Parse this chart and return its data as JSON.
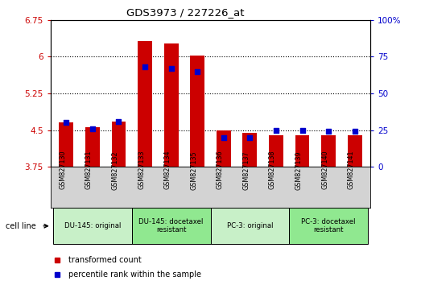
{
  "title": "GDS3973 / 227226_at",
  "samples": [
    "GSM827130",
    "GSM827131",
    "GSM827132",
    "GSM827133",
    "GSM827134",
    "GSM827135",
    "GSM827136",
    "GSM827137",
    "GSM827138",
    "GSM827139",
    "GSM827140",
    "GSM827141"
  ],
  "bar_values": [
    4.65,
    4.55,
    4.67,
    6.32,
    6.27,
    6.02,
    4.5,
    4.45,
    4.4,
    4.4,
    4.4,
    4.4
  ],
  "dot_values": [
    30,
    26,
    31,
    68,
    67,
    65,
    20,
    20,
    25,
    25,
    24,
    24
  ],
  "ymin": 3.75,
  "ymax": 6.75,
  "yticks": [
    3.75,
    4.5,
    5.25,
    6.0,
    6.75
  ],
  "ytick_labels": [
    "3.75",
    "4.5",
    "5.25",
    "6",
    "6.75"
  ],
  "y2min": 0,
  "y2max": 100,
  "y2ticks": [
    0,
    25,
    50,
    75,
    100
  ],
  "y2tick_labels": [
    "0",
    "25",
    "50",
    "75",
    "100%"
  ],
  "hlines": [
    4.5,
    5.25,
    6.0
  ],
  "bar_color": "#cc0000",
  "dot_color": "#0000cc",
  "bar_bottom": 3.75,
  "cell_line_groups": [
    {
      "label": "DU-145: original",
      "start": 0,
      "end": 3,
      "color": "#c8f0c8"
    },
    {
      "label": "DU-145: docetaxel\nresistant",
      "start": 3,
      "end": 6,
      "color": "#90e890"
    },
    {
      "label": "PC-3: original",
      "start": 6,
      "end": 9,
      "color": "#c8f0c8"
    },
    {
      "label": "PC-3: docetaxel\nresistant",
      "start": 9,
      "end": 12,
      "color": "#90e890"
    }
  ],
  "legend_items": [
    {
      "label": "transformed count",
      "color": "#cc0000"
    },
    {
      "label": "percentile rank within the sample",
      "color": "#0000cc"
    }
  ],
  "cell_line_label": "cell line",
  "bar_color_label": "#cc0000",
  "y2label_color": "#0000cc",
  "tick_bg_color": "#d3d3d3",
  "figure_bg": "#ffffff"
}
